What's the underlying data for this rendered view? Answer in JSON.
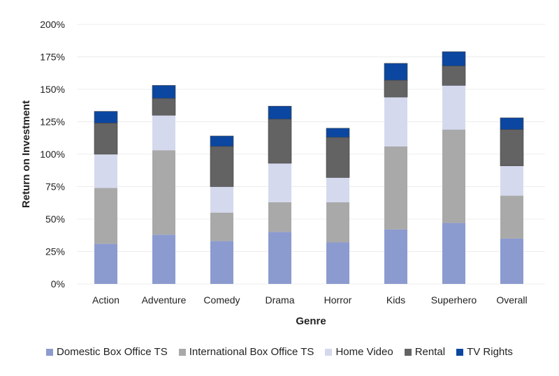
{
  "chart_data": {
    "type": "bar",
    "stacked": true,
    "title": "",
    "xlabel": "Genre",
    "ylabel": "Return on Investment",
    "ylim": [
      0,
      200
    ],
    "yticks": [
      0,
      25,
      50,
      75,
      100,
      125,
      150,
      175,
      200
    ],
    "ytick_labels": [
      "0%",
      "25%",
      "50%",
      "75%",
      "100%",
      "125%",
      "150%",
      "175%",
      "200%"
    ],
    "grid": true,
    "legend_position": "bottom",
    "categories": [
      "Action",
      "Adventure",
      "Comedy",
      "Drama",
      "Horror",
      "Kids",
      "Superhero",
      "Overall"
    ],
    "series": [
      {
        "name": "Domestic Box Office TS",
        "color": "#8c9bcf",
        "values": [
          31,
          38,
          33,
          40,
          32,
          42,
          47,
          35
        ]
      },
      {
        "name": "International Box Office TS",
        "color": "#a9a9a9",
        "values": [
          43,
          65,
          22,
          23,
          31,
          64,
          72,
          33
        ]
      },
      {
        "name": "Home Video",
        "color": "#d5d9ee",
        "values": [
          26,
          27,
          20,
          30,
          19,
          38,
          34,
          23
        ]
      },
      {
        "name": "Rental",
        "color": "#636363",
        "values": [
          24,
          13,
          31,
          34,
          31,
          13,
          15,
          28
        ]
      },
      {
        "name": "TV Rights",
        "color": "#0b47a1",
        "values": [
          9,
          10,
          8,
          10,
          7,
          13,
          11,
          9
        ]
      }
    ]
  }
}
